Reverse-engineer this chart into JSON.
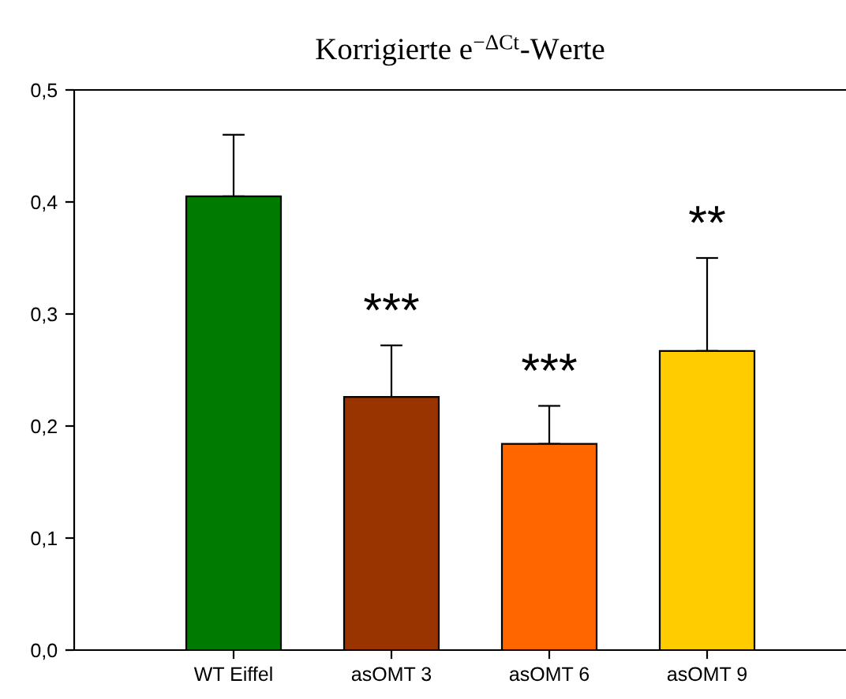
{
  "chart_data": {
    "type": "bar",
    "title": "Korrigierte e$^{−ΔCt}$-Werte",
    "categories": [
      "WT Eiffel",
      "asOMT 3",
      "asOMT 6",
      "asOMT 9"
    ],
    "values": [
      0.405,
      0.226,
      0.184,
      0.267
    ],
    "errors": [
      [
        0.405,
        0.46
      ],
      [
        0.226,
        0.272
      ],
      [
        0.184,
        0.218
      ],
      [
        0.267,
        0.35
      ]
    ],
    "colors": [
      "#007a00",
      "#993300",
      "#ff6600",
      "#ffcc00"
    ],
    "ylim": [
      0,
      0.5
    ],
    "yticks": [
      {
        "value": 0,
        "label": "0,0"
      },
      {
        "value": 0.1,
        "label": "0,1"
      },
      {
        "value": 0.2,
        "label": "0,2"
      },
      {
        "value": 0.3,
        "label": "0,3"
      },
      {
        "value": 0.4,
        "label": "0,4"
      },
      {
        "value": 0.5,
        "label": "0,5"
      }
    ],
    "annotations": [
      "***",
      "***",
      "**"
    ],
    "grid": false,
    "legend": false
  }
}
